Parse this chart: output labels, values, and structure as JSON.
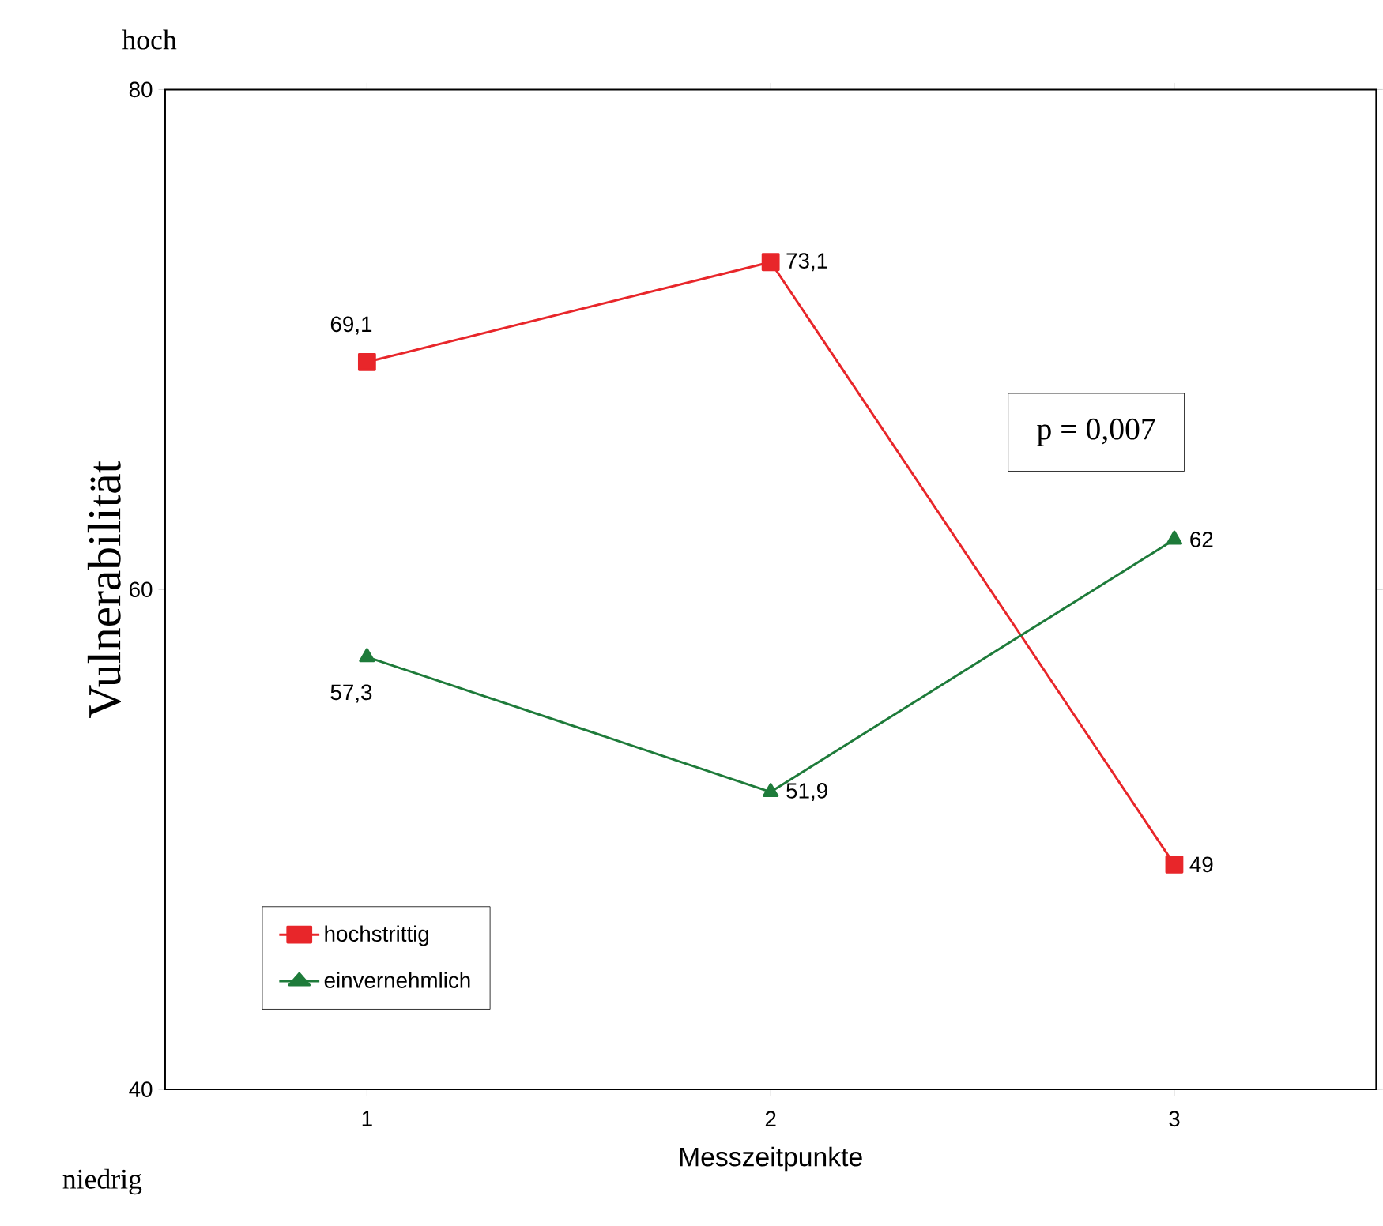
{
  "chart_data": {
    "type": "line",
    "xlabel": "Messzeitpunkte",
    "ylabel": "Vulnerabilität",
    "categories": [
      "1",
      "2",
      "3"
    ],
    "ylim": [
      40,
      80
    ],
    "yticks": [
      40,
      60,
      80
    ],
    "legend": "bottom left",
    "grid": false,
    "series": [
      {
        "name": "hochstrittig",
        "color": "#e8262a",
        "marker": "square",
        "values": [
          69.1,
          73.1,
          49
        ],
        "value_labels": [
          "69,1",
          "73,1",
          "49"
        ]
      },
      {
        "name": "einvernehmlich",
        "color": "#1e7b3a",
        "marker": "triangle",
        "values": [
          57.3,
          51.9,
          62
        ],
        "value_labels": [
          "57,3",
          "51,9",
          "62"
        ]
      }
    ],
    "annotations": [
      "hoch",
      "niedrig",
      "p = 0,007"
    ]
  }
}
